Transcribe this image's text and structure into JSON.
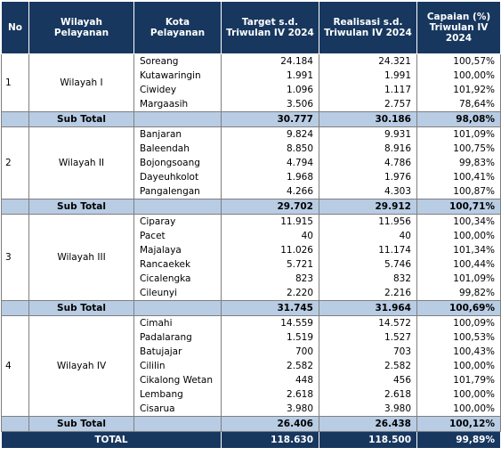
{
  "header": [
    "No",
    "Wilayah  Pelayanan",
    "Kota Pelayanan",
    "Target s.d. Triwulan IV 2024",
    "Realisasi s.d. Triwulan IV 2024",
    "Capaian (%) Triwulan IV 2024"
  ],
  "groups": [
    {
      "no": "1",
      "wilayah": "Wilayah I",
      "rows": [
        [
          "Soreang",
          "24.184",
          "24.321",
          "100,57%"
        ],
        [
          "Kutawaringin",
          "1.991",
          "1.991",
          "100,00%"
        ],
        [
          "Ciwidey",
          "1.096",
          "1.117",
          "101,92%"
        ],
        [
          "Margaasih",
          "3.506",
          "2.757",
          "78,64%"
        ]
      ],
      "subtotal": {
        "label": "Sub Total",
        "target": "30.777",
        "realisasi": "30.186",
        "capaian": "98,08%"
      }
    },
    {
      "no": "2",
      "wilayah": "Wilayah II",
      "rows": [
        [
          "Banjaran",
          "9.824",
          "9.931",
          "101,09%"
        ],
        [
          "Baleendah",
          "8.850",
          "8.916",
          "100,75%"
        ],
        [
          "Bojongsoang",
          "4.794",
          "4.786",
          "99,83%"
        ],
        [
          "Dayeuhkolot",
          "1.968",
          "1.976",
          "100,41%"
        ],
        [
          "Pangalengan",
          "4.266",
          "4.303",
          "100,87%"
        ]
      ],
      "subtotal": {
        "label": "Sub Total",
        "target": "29.702",
        "realisasi": "29.912",
        "capaian": "100,71%"
      }
    },
    {
      "no": "3",
      "wilayah": "Wilayah III",
      "rows": [
        [
          "Ciparay",
          "11.915",
          "11.956",
          "100,34%"
        ],
        [
          "Pacet",
          "40",
          "40",
          "100,00%"
        ],
        [
          "Majalaya",
          "11.026",
          "11.174",
          "101,34%"
        ],
        [
          "Rancaekek",
          "5.721",
          "5.746",
          "100,44%"
        ],
        [
          "Cicalengka",
          "823",
          "832",
          "101,09%"
        ],
        [
          "Cileunyi",
          "2.220",
          "2.216",
          "99,82%"
        ]
      ],
      "subtotal": {
        "label": "Sub Total",
        "target": "31.745",
        "realisasi": "31.964",
        "capaian": "100,69%"
      }
    },
    {
      "no": "4",
      "wilayah": "Wilayah IV",
      "rows": [
        [
          "Cimahi",
          "14.559",
          "14.572",
          "100,09%"
        ],
        [
          "Padalarang",
          "1.519",
          "1.527",
          "100,53%"
        ],
        [
          "Batujajar",
          "700",
          "703",
          "100,43%"
        ],
        [
          "Cililin",
          "2.582",
          "2.582",
          "100,00%"
        ],
        [
          "Cikalong Wetan",
          "448",
          "456",
          "101,79%"
        ],
        [
          "Lembang",
          "2.618",
          "2.618",
          "100,00%"
        ],
        [
          "Cisarua",
          "3.980",
          "3.980",
          "100,00%"
        ]
      ],
      "subtotal": {
        "label": "Sub Total",
        "target": "26.406",
        "realisasi": "26.438",
        "capaian": "100,12%"
      }
    }
  ],
  "total": {
    "label": "TOTAL",
    "target": "118.630",
    "realisasi": "118.500",
    "capaian": "99,89%"
  }
}
